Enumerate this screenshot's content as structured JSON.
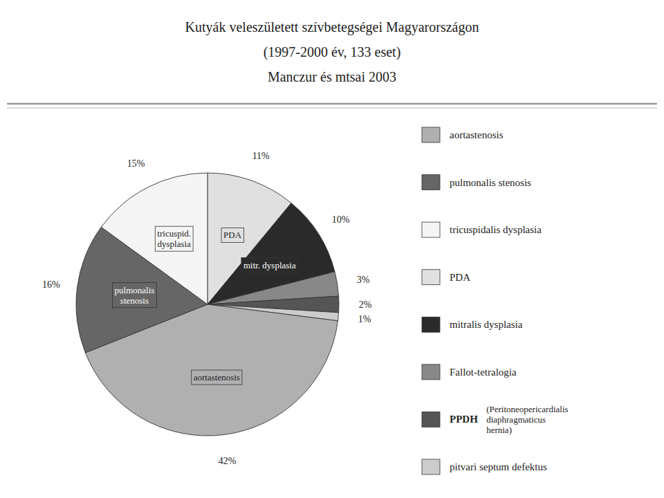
{
  "chart_data": {
    "type": "pie",
    "title": [
      "Kutyák veleszületett szívbetegségei Magyarországon",
      "(1997-2000 év,  133 eset)",
      "Manczur és mtsai 2003"
    ],
    "categories": [
      "PDA",
      "mitr. dysplasia",
      null,
      null,
      null,
      "aortastenosis",
      "pulmonalis\nstenosis",
      "tricuspid.\ndysplasia"
    ],
    "values": [
      11,
      10,
      3,
      2,
      1,
      42,
      16,
      15
    ],
    "value_labels": [
      "11%",
      "10%",
      "3%",
      "2%",
      "1%",
      "42%",
      "16%",
      "15%"
    ],
    "colors": [
      "#e0e0e0",
      "#2a2a2a",
      "#888888",
      "#555555",
      "#cccccc",
      "#b0b0b0",
      "#666666",
      "#f5f5f5"
    ],
    "data_labels": true,
    "legend": "right",
    "legend_entries": [
      {
        "label": "aortastenosis",
        "color": "#b0b0b0"
      },
      {
        "label": "pulmonalis stenosis",
        "color": "#666666"
      },
      {
        "label": "tricuspidalis dysplasia",
        "color": "#f5f5f5"
      },
      {
        "label": "PDA",
        "color": "#e0e0e0"
      },
      {
        "label": "mitralis dysplasia",
        "color": "#2a2a2a"
      },
      {
        "label": "Fallot-tetralogia",
        "color": "#888888"
      },
      {
        "label": "PPDH",
        "color": "#555555",
        "description": "(Peritoneopericardialis\ndiaphragmaticus\nhernia)"
      },
      {
        "label": "pitvari septum defektus",
        "color": "#cccccc"
      }
    ]
  }
}
